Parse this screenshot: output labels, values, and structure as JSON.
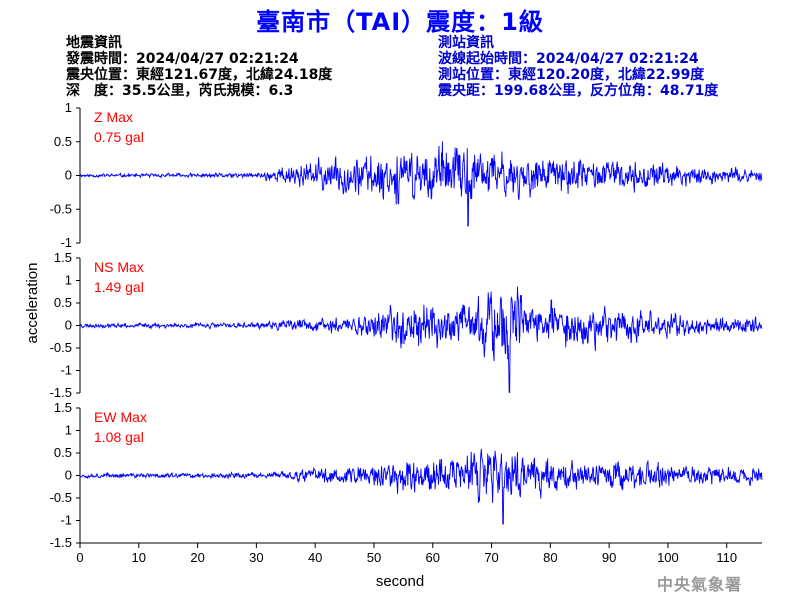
{
  "title": "臺南市（TAI）震度：1級",
  "event_info": {
    "heading": "地震資訊",
    "origin_time": "發震時間：2024/04/27 02:21:24",
    "epicenter": "震央位置：東經121.67度，北緯24.18度",
    "depth_magnitude": "深　度：35.5公里，芮氏規模：6.3"
  },
  "station_info": {
    "heading": "測站資訊",
    "wave_start": "波線起始時間：2024/04/27 02:21:24",
    "location": "測站位置：東經120.20度，北緯22.99度",
    "distance": "震央距：199.68公里，反方位角：48.71度"
  },
  "watermark": "中央氣象署",
  "colors": {
    "title": "#0000ff",
    "trace": "#0000ff",
    "max_label": "#ff0000",
    "station_info": "#0000cc"
  },
  "chart_data": [
    {
      "type": "line",
      "component": "Z",
      "max_label": "Z Max",
      "max_value": "0.75 gal",
      "x_range": [
        0,
        116
      ],
      "ylim": [
        -1,
        1
      ],
      "yticks": [
        "1",
        "0.5",
        "0",
        "-0.5",
        "-1"
      ],
      "amplitude_envelope": [
        [
          0,
          0.04
        ],
        [
          30,
          0.06
        ],
        [
          35,
          0.25
        ],
        [
          45,
          0.45
        ],
        [
          60,
          0.7
        ],
        [
          66,
          0.75
        ],
        [
          75,
          0.5
        ],
        [
          90,
          0.35
        ],
        [
          105,
          0.22
        ],
        [
          116,
          0.14
        ]
      ],
      "seed": 11
    },
    {
      "type": "line",
      "component": "NS",
      "max_label": "NS Max",
      "max_value": "1.49 gal",
      "x_range": [
        0,
        116
      ],
      "ylim": [
        -1.5,
        1.5
      ],
      "yticks": [
        "1.5",
        "1",
        "0.5",
        "0",
        "-0.5",
        "-1",
        "-1.5"
      ],
      "amplitude_envelope": [
        [
          0,
          0.08
        ],
        [
          30,
          0.1
        ],
        [
          42,
          0.3
        ],
        [
          50,
          0.5
        ],
        [
          57,
          0.9
        ],
        [
          65,
          0.8
        ],
        [
          73,
          1.49
        ],
        [
          80,
          0.8
        ],
        [
          95,
          0.6
        ],
        [
          105,
          0.35
        ],
        [
          116,
          0.3
        ]
      ],
      "seed": 23
    },
    {
      "type": "line",
      "component": "EW",
      "max_label": "EW Max",
      "max_value": "1.08 gal",
      "x_range": [
        0,
        116
      ],
      "ylim": [
        -1.5,
        1.5
      ],
      "yticks": [
        "1.5",
        "1",
        "0.5",
        "0",
        "-0.5",
        "-1",
        "-1.5"
      ],
      "amplitude_envelope": [
        [
          0,
          0.08
        ],
        [
          32,
          0.1
        ],
        [
          42,
          0.3
        ],
        [
          50,
          0.45
        ],
        [
          58,
          0.75
        ],
        [
          65,
          0.8
        ],
        [
          72,
          1.08
        ],
        [
          80,
          0.65
        ],
        [
          95,
          0.5
        ],
        [
          105,
          0.35
        ],
        [
          116,
          0.3
        ]
      ],
      "seed": 37
    }
  ],
  "x_axis": {
    "label": "second",
    "ticks": [
      "0",
      "10",
      "20",
      "30",
      "40",
      "50",
      "60",
      "70",
      "80",
      "90",
      "100",
      "110"
    ]
  },
  "y_axis": {
    "label": "acceleration"
  }
}
